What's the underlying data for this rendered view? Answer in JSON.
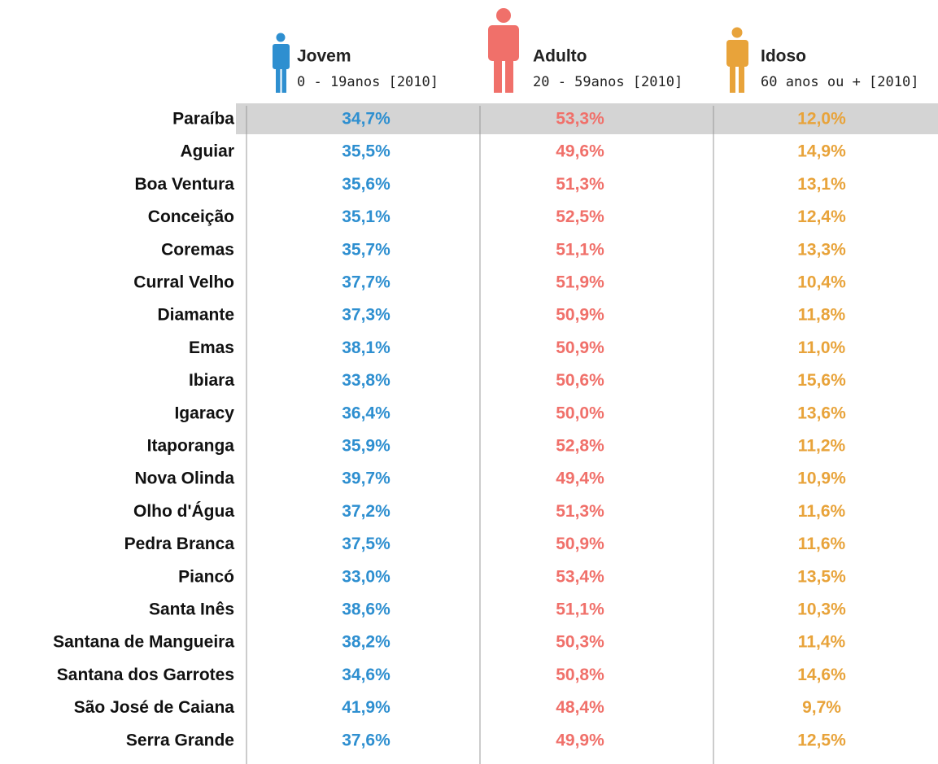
{
  "header": {
    "groups": [
      {
        "title": "Jovem",
        "subtitle": "0 - 19anos [2010]"
      },
      {
        "title": "Adulto",
        "subtitle": "20 - 59anos [2010]"
      },
      {
        "title": "Idoso",
        "subtitle": "60 anos ou + [2010]"
      }
    ]
  },
  "table": {
    "rows": [
      [
        "Paraíba",
        "34,7%",
        "53,3%",
        "12,0%"
      ],
      [
        "Aguiar",
        "35,5%",
        "49,6%",
        "14,9%"
      ],
      [
        "Boa Ventura",
        "35,6%",
        "51,3%",
        "13,1%"
      ],
      [
        "Conceição",
        "35,1%",
        "52,5%",
        "12,4%"
      ],
      [
        "Coremas",
        "35,7%",
        "51,1%",
        "13,3%"
      ],
      [
        "Curral Velho",
        "37,7%",
        "51,9%",
        "10,4%"
      ],
      [
        "Diamante",
        "37,3%",
        "50,9%",
        "11,8%"
      ],
      [
        "Emas",
        "38,1%",
        "50,9%",
        "11,0%"
      ],
      [
        "Ibiara",
        "33,8%",
        "50,6%",
        "15,6%"
      ],
      [
        "Igaracy",
        "36,4%",
        "50,0%",
        "13,6%"
      ],
      [
        "Itaporanga",
        "35,9%",
        "52,8%",
        "11,2%"
      ],
      [
        "Nova Olinda",
        "39,7%",
        "49,4%",
        "10,9%"
      ],
      [
        "Olho d'Água",
        "37,2%",
        "51,3%",
        "11,6%"
      ],
      [
        "Pedra Branca",
        "37,5%",
        "50,9%",
        "11,6%"
      ],
      [
        "Piancó",
        "33,0%",
        "53,4%",
        "13,5%"
      ],
      [
        "Santa Inês",
        "38,6%",
        "51,1%",
        "10,3%"
      ],
      [
        "Santana de Mangueira",
        "38,2%",
        "50,3%",
        "11,4%"
      ],
      [
        "Santana dos Garrotes",
        "34,6%",
        "50,8%",
        "14,6%"
      ],
      [
        "São José de Caiana",
        "41,9%",
        "48,4%",
        "9,7%"
      ],
      [
        "Serra Grande",
        "37,6%",
        "49,9%",
        "12,5%"
      ]
    ]
  }
}
